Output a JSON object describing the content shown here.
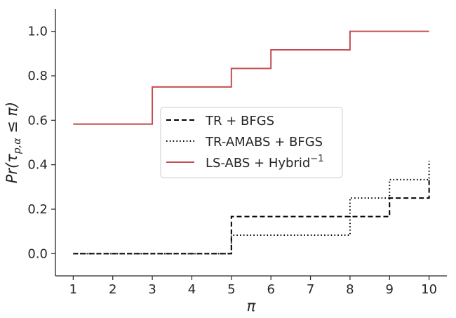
{
  "chart_data": {
    "type": "line",
    "title": "",
    "xlabel": "π",
    "ylabel": "Pr(τ_{p,α} ≤ π)",
    "ylabel_parts": [
      "Pr(τ",
      "p,α",
      " ≤ π)"
    ],
    "xlim": [
      0.55,
      10.45
    ],
    "ylim": [
      -0.1,
      1.1
    ],
    "xticks": [
      "1",
      "2",
      "3",
      "4",
      "5",
      "6",
      "7",
      "8",
      "9",
      "10"
    ],
    "yticks": [
      "0.0",
      "0.2",
      "0.4",
      "0.6",
      "0.8",
      "1.0"
    ],
    "grid": false,
    "legend_position": "center",
    "series": [
      {
        "name": "TR + BFGS",
        "style": "dashed",
        "color": "#000000",
        "step": "post",
        "points": [
          [
            1,
            0.0
          ],
          [
            5,
            0.167
          ],
          [
            8,
            0.167
          ],
          [
            9,
            0.25
          ],
          [
            10,
            0.333
          ]
        ]
      },
      {
        "name": "TR-AMABS + BFGS",
        "style": "dotted",
        "color": "#000000",
        "step": "post",
        "points": [
          [
            1,
            0.0
          ],
          [
            5,
            0.083
          ],
          [
            8,
            0.25
          ],
          [
            9,
            0.333
          ],
          [
            10,
            0.417
          ]
        ]
      },
      {
        "name": "LS-ABS + Hybrid",
        "name_superscript": "−1",
        "style": "solid",
        "color": "#c44e52",
        "step": "post",
        "points": [
          [
            1,
            0.583
          ],
          [
            3,
            0.75
          ],
          [
            5,
            0.833
          ],
          [
            6,
            0.917
          ],
          [
            8,
            1.0
          ],
          [
            10,
            1.0
          ]
        ]
      }
    ]
  }
}
